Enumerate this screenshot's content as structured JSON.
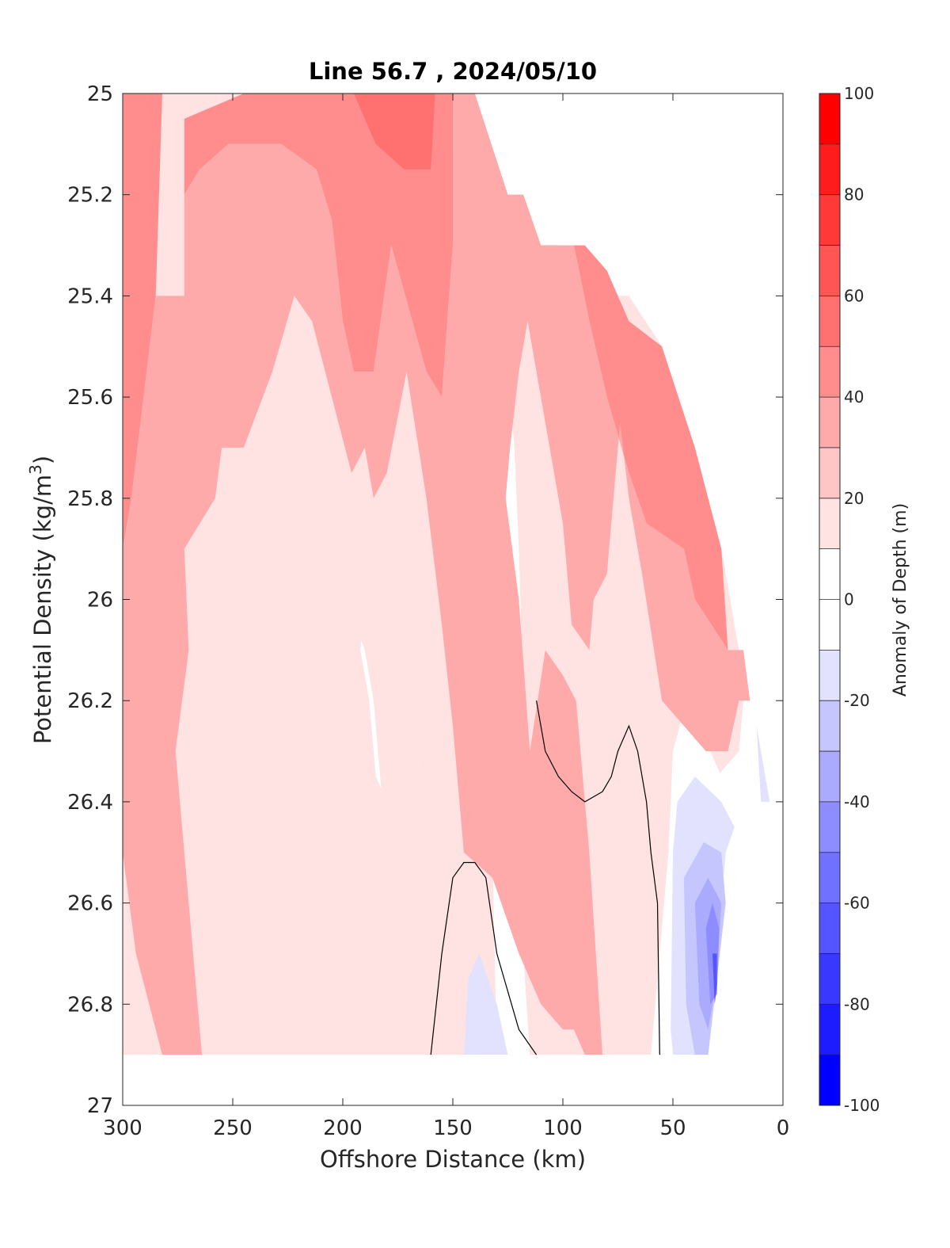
{
  "chart_data": {
    "type": "contour",
    "title": "Line 56.7 , 2024/05/10",
    "xlabel": "Offshore Distance (km)",
    "ylabel": "Potential Density (kg/m",
    "ylabel_sup": "3",
    "ylabel_end": ")",
    "xlim": [
      300,
      0
    ],
    "ylim": [
      25,
      27
    ],
    "x_reversed": true,
    "y_reversed": true,
    "x_ticks": [
      300,
      250,
      200,
      150,
      100,
      50,
      0
    ],
    "y_ticks": [
      25,
      25.2,
      25.4,
      25.6,
      25.8,
      26,
      26.2,
      26.4,
      26.6,
      26.8,
      27
    ],
    "y_tick_labels": [
      "25",
      "25.2",
      "25.4",
      "25.6",
      "25.8",
      "26",
      "26.2",
      "26.4",
      "26.6",
      "26.8",
      "27"
    ],
    "colorbar": {
      "label": "Anomaly of Depth (m)",
      "range": [
        -100,
        100
      ],
      "step": 20,
      "tick_values": [
        100,
        80,
        60,
        40,
        20,
        0,
        -20,
        -40,
        -60,
        -80,
        -100
      ],
      "tick_labels": [
        "100",
        "80",
        "60",
        "40",
        "20",
        "0",
        "-20",
        "-40",
        "-60",
        "-80",
        "-100"
      ],
      "band_colors": [
        "#0000ff",
        "#1c1cff",
        "#3838ff",
        "#5555ff",
        "#7171ff",
        "#8d8dff",
        "#aaaaff",
        "#c6c6ff",
        "#e2e2ff",
        "#ffffff",
        "#ffffff",
        "#ffe2e2",
        "#ffc6c6",
        "#ffaaaa",
        "#ff8d8d",
        "#ff7171",
        "#ff5555",
        "#ff3838",
        "#ff1c1c",
        "#ff0000"
      ]
    },
    "contour_levels": [
      {
        "value": 45,
        "color": "#ff8d8d",
        "regions": [
          [
            [
              300,
              25.7
            ],
            [
              300,
              25
            ],
            [
              282,
              25
            ],
            [
              285,
              25.4
            ],
            [
              296,
              25.8
            ],
            [
              300,
              25.9
            ]
          ],
          [
            [
              272,
              25.4
            ],
            [
              272,
              25.2
            ],
            [
              265,
              25.15
            ],
            [
              252,
              25.1
            ],
            [
              228,
              25.1
            ],
            [
              212,
              25.15
            ],
            [
              205,
              25.25
            ],
            [
              200,
              25.45
            ],
            [
              195,
              25.55
            ],
            [
              186,
              25.55
            ],
            [
              178,
              25.3
            ],
            [
              162,
              25.55
            ],
            [
              155,
              25.6
            ],
            [
              150,
              25.3
            ],
            [
              150,
              25
            ],
            [
              200,
              25
            ],
            [
              245,
              25
            ],
            [
              272,
              25.05
            ]
          ],
          [
            [
              125,
              25.2
            ],
            [
              118,
              25.2
            ],
            [
              110,
              25.3
            ],
            [
              95,
              25.3
            ],
            [
              88,
              25.45
            ],
            [
              80,
              25.6
            ],
            [
              70,
              25.75
            ],
            [
              62,
              25.85
            ],
            [
              45,
              25.9
            ],
            [
              40,
              26
            ],
            [
              25,
              26.1
            ],
            [
              28,
              25.9
            ],
            [
              40,
              25.7
            ],
            [
              55,
              25.5
            ],
            [
              70,
              25.45
            ],
            [
              80,
              25.35
            ],
            [
              90,
              25.3
            ],
            [
              112,
              25.3
            ],
            [
              120,
              25.25
            ]
          ]
        ]
      },
      {
        "value": 55,
        "color": "#ff7171",
        "regions": [
          [
            [
              195,
              25
            ],
            [
              185,
              25.1
            ],
            [
              172,
              25.15
            ],
            [
              160,
              25.15
            ],
            [
              158,
              25
            ],
            [
              180,
              25
            ]
          ],
          [
            [
              110,
              25.3
            ],
            [
              105,
              25.4
            ],
            [
              100,
              25.35
            ],
            [
              102,
              25.3
            ]
          ],
          [
            [
              290,
              25.9
            ],
            [
              286,
              26.05
            ],
            [
              283,
              26.2
            ],
            [
              280,
              26.3
            ],
            [
              285,
              26
            ],
            [
              290,
              25.85
            ]
          ]
        ]
      },
      {
        "value": 35,
        "color": "#ffaaaa",
        "regions": [
          [
            [
              300,
              26.5
            ],
            [
              294,
              26.7
            ],
            [
              282,
              26.9
            ],
            [
              264,
              26.9
            ],
            [
              272,
              26.5
            ],
            [
              276,
              26.3
            ],
            [
              270,
              26.1
            ],
            [
              272,
              25.9
            ],
            [
              258,
              25.8
            ],
            [
              255,
              25.7
            ],
            [
              245,
              25.7
            ],
            [
              232,
              25.55
            ],
            [
              222,
              25.4
            ],
            [
              214,
              25.45
            ],
            [
              208,
              25.55
            ],
            [
              205,
              25.6
            ],
            [
              196,
              25.75
            ],
            [
              190,
              25.7
            ],
            [
              186,
              25.8
            ],
            [
              180,
              25.75
            ],
            [
              171,
              25.55
            ],
            [
              162,
              25.8
            ],
            [
              155,
              26.05
            ],
            [
              150,
              26.25
            ],
            [
              145,
              26.5
            ],
            [
              132,
              26.55
            ],
            [
              120,
              26.7
            ],
            [
              110,
              26.8
            ],
            [
              100,
              26.85
            ],
            [
              95,
              26.85
            ],
            [
              90,
              26.9
            ],
            [
              82,
              26.9
            ],
            [
              88,
              26.5
            ],
            [
              94,
              26.2
            ],
            [
              100,
              26.15
            ],
            [
              108,
              26.1
            ],
            [
              115,
              26.3
            ],
            [
              120,
              26
            ],
            [
              126,
              25.8
            ],
            [
              124,
              25.7
            ],
            [
              120,
              25.55
            ],
            [
              116,
              25.45
            ],
            [
              110,
              25.6
            ],
            [
              100,
              25.85
            ],
            [
              96,
              26.05
            ],
            [
              88,
              26.1
            ],
            [
              86,
              26
            ],
            [
              80,
              25.95
            ],
            [
              76,
              25.75
            ],
            [
              74,
              25.65
            ],
            [
              70,
              25.8
            ],
            [
              64,
              25.95
            ],
            [
              55,
              26.2
            ],
            [
              45,
              26.25
            ],
            [
              35,
              26.3
            ],
            [
              25,
              26.3
            ],
            [
              20,
              26.2
            ],
            [
              15,
              26.2
            ],
            [
              18,
              26.1
            ],
            [
              25,
              26.1
            ],
            [
              40,
              26
            ],
            [
              45,
              25.9
            ],
            [
              62,
              25.85
            ],
            [
              70,
              25.75
            ],
            [
              80,
              25.6
            ],
            [
              88,
              25.45
            ],
            [
              95,
              25.3
            ],
            [
              110,
              25.3
            ],
            [
              118,
              25.2
            ],
            [
              125,
              25.2
            ],
            [
              140,
              25
            ],
            [
              150,
              25
            ],
            [
              150,
              25.3
            ],
            [
              155,
              25.6
            ],
            [
              162,
              25.55
            ],
            [
              178,
              25.3
            ],
            [
              186,
              25.55
            ],
            [
              195,
              25.55
            ],
            [
              200,
              25.45
            ],
            [
              205,
              25.25
            ],
            [
              212,
              25.15
            ],
            [
              228,
              25.1
            ],
            [
              252,
              25.1
            ],
            [
              265,
              25.15
            ],
            [
              272,
              25.2
            ],
            [
              272,
              25.4
            ],
            [
              285,
              25.4
            ],
            [
              296,
              25.8
            ],
            [
              300,
              25.9
            ]
          ]
        ]
      }
    ],
    "negative_regions": [
      {
        "value": -15,
        "color": "#e2e2ff",
        "regions": [
          [
            [
              50,
              26.5
            ],
            [
              51,
              26.85
            ],
            [
              50,
              26.9
            ],
            [
              34,
              26.9
            ],
            [
              32,
              26.8
            ],
            [
              26,
              26.5
            ],
            [
              22,
              26.45
            ],
            [
              28,
              26.4
            ],
            [
              40,
              26.35
            ],
            [
              48,
              26.4
            ]
          ],
          [
            [
              145,
              26.9
            ],
            [
              143,
              26.75
            ],
            [
              138,
              26.7
            ],
            [
              130,
              26.8
            ],
            [
              125,
              26.9
            ]
          ],
          [
            [
              12,
              26.25
            ],
            [
              10,
              26.4
            ],
            [
              6,
              26.4
            ],
            [
              10,
              26.3
            ]
          ]
        ]
      },
      {
        "value": -25,
        "color": "#c6c6ff",
        "regions": [
          [
            [
              45,
              26.55
            ],
            [
              44,
              26.8
            ],
            [
              40,
              26.9
            ],
            [
              34,
              26.9
            ],
            [
              30,
              26.75
            ],
            [
              26,
              26.6
            ],
            [
              28,
              26.5
            ],
            [
              36,
              26.48
            ]
          ]
        ]
      },
      {
        "value": -35,
        "color": "#aaaaff",
        "regions": [
          [
            [
              40,
              26.6
            ],
            [
              38,
              26.8
            ],
            [
              34,
              26.85
            ],
            [
              30,
              26.75
            ],
            [
              28,
              26.6
            ],
            [
              34,
              26.55
            ]
          ]
        ]
      },
      {
        "value": -45,
        "color": "#8d8dff",
        "regions": [
          [
            [
              35,
              26.65
            ],
            [
              33,
              26.8
            ],
            [
              30,
              26.78
            ],
            [
              29,
              26.65
            ],
            [
              32,
              26.6
            ]
          ]
        ]
      },
      {
        "value": -60,
        "color": "#5555ff",
        "regions": [
          [
            [
              32,
              26.7
            ],
            [
              31,
              26.8
            ],
            [
              30,
              26.76
            ],
            [
              30,
              26.7
            ]
          ]
        ]
      }
    ],
    "zero_contours": [
      [
        [
          160,
          26.9
        ],
        [
          155,
          26.7
        ],
        [
          150,
          26.55
        ],
        [
          145,
          26.52
        ],
        [
          140,
          26.52
        ],
        [
          135,
          26.55
        ],
        [
          130,
          26.7
        ],
        [
          120,
          26.85
        ],
        [
          112,
          26.9
        ]
      ],
      [
        [
          56,
          26.9
        ],
        [
          57,
          26.6
        ],
        [
          60,
          26.5
        ],
        [
          62,
          26.4
        ],
        [
          66,
          26.3
        ],
        [
          70,
          26.25
        ],
        [
          75,
          26.3
        ],
        [
          78,
          26.35
        ],
        [
          82,
          26.38
        ],
        [
          90,
          26.4
        ],
        [
          96,
          26.38
        ],
        [
          102,
          26.35
        ],
        [
          108,
          26.3
        ],
        [
          112,
          26.2
        ]
      ]
    ]
  }
}
